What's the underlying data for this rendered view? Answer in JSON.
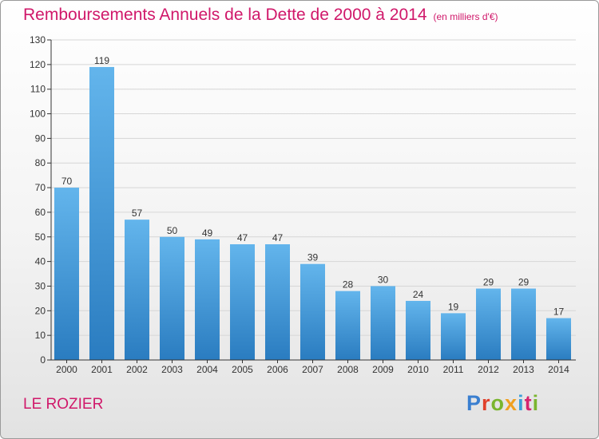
{
  "title": "Remboursements Annuels de la Dette de 2000 à 2014",
  "subtitle": "(en milliers d'€)",
  "commune": "LE ROZIER",
  "logo": {
    "text": "Proxiti",
    "colors": [
      "#3a7fd0",
      "#e0402a",
      "#7ab52e",
      "#f0a020",
      "#3a9fd8",
      "#d6246e",
      "#7ab52e"
    ]
  },
  "colors": {
    "title": "#d0186a",
    "bar_top": "#63b5ec",
    "bar_bottom": "#2a7cc0",
    "axis": "#333333",
    "grid": "#d6d6d6"
  },
  "chart_data": {
    "type": "bar",
    "categories": [
      "2000",
      "2001",
      "2002",
      "2003",
      "2004",
      "2005",
      "2006",
      "2007",
      "2008",
      "2009",
      "2010",
      "2011",
      "2012",
      "2013",
      "2014"
    ],
    "values": [
      70,
      119,
      57,
      50,
      49,
      47,
      47,
      39,
      28,
      30,
      24,
      19,
      29,
      29,
      17
    ],
    "yticks": [
      0,
      10,
      20,
      30,
      40,
      50,
      60,
      70,
      80,
      90,
      100,
      110,
      120,
      130
    ],
    "ylim": [
      0,
      130
    ],
    "grid": true,
    "title": "Remboursements Annuels de la Dette de 2000 à 2014",
    "xlabel": "",
    "ylabel": ""
  }
}
